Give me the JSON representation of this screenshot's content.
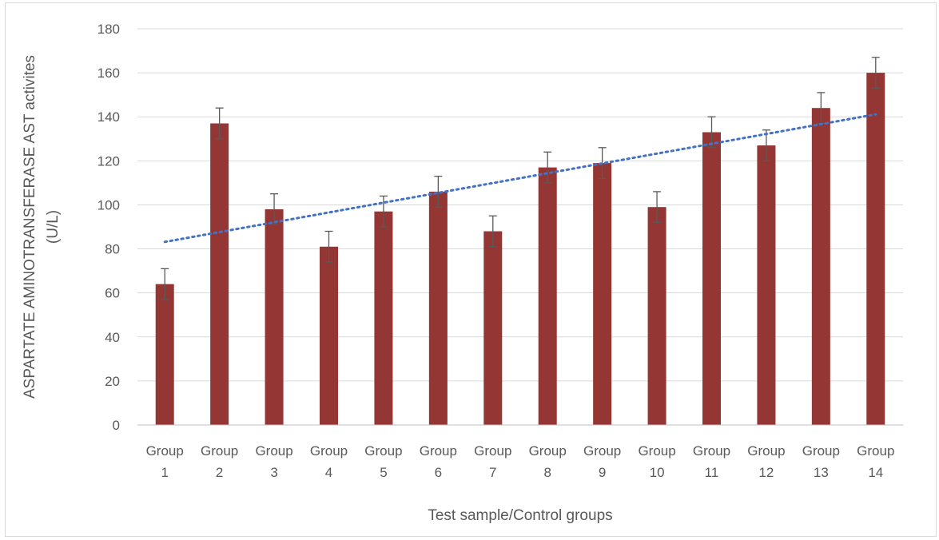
{
  "chart_data": {
    "type": "bar",
    "categories": [
      "Group 1",
      "Group 2",
      "Group 3",
      "Group 4",
      "Group 5",
      "Group 6",
      "Group 7",
      "Group 8",
      "Group 9",
      "Group 10",
      "Group 11",
      "Group 12",
      "Group 13",
      "Group 14"
    ],
    "category_lines": [
      [
        "Group",
        "1"
      ],
      [
        "Group",
        "2"
      ],
      [
        "Group",
        "3"
      ],
      [
        "Group",
        "4"
      ],
      [
        "Group",
        "5"
      ],
      [
        "Group",
        "6"
      ],
      [
        "Group",
        "7"
      ],
      [
        "Group",
        "8"
      ],
      [
        "Group",
        "9"
      ],
      [
        "Group",
        "10"
      ],
      [
        "Group",
        "11"
      ],
      [
        "Group",
        "12"
      ],
      [
        "Group",
        "13"
      ],
      [
        "Group",
        "14"
      ]
    ],
    "values": [
      64,
      137,
      98,
      81,
      97,
      106,
      88,
      117,
      119,
      99,
      133,
      127,
      144,
      160
    ],
    "error": [
      7,
      7,
      7,
      7,
      7,
      7,
      7,
      7,
      7,
      7,
      7,
      7,
      7,
      7
    ],
    "trendline": {
      "type": "linear",
      "color": "#4472c4",
      "style": "dotted"
    },
    "xlabel": "Test sample/Control groups",
    "ylabel_lines": [
      "ASPARTATE AMINOTRANSFERASE AST activites",
      "(U/L)"
    ],
    "ylim": [
      0,
      180
    ],
    "yticks": [
      0,
      20,
      40,
      60,
      80,
      100,
      120,
      140,
      160,
      180
    ],
    "grid": true,
    "bar_color": "#943634",
    "grid_color": "#d9d9d9",
    "axis_color": "#bfbfbf"
  }
}
